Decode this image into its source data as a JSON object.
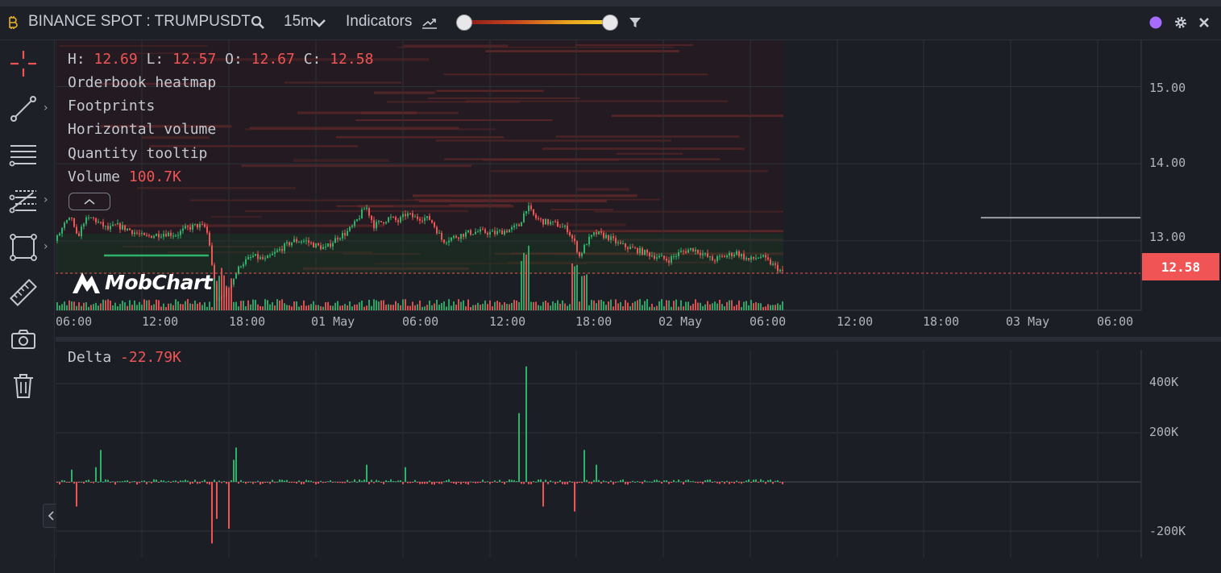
{
  "toolbar": {
    "symbol": "BINANCE SPOT : TRUMPUSDT",
    "timeframe": "15m",
    "indicators_label": "Indicators"
  },
  "legend": {
    "h_label": "H:",
    "h_value": "12.69",
    "l_label": "L:",
    "l_value": "12.57",
    "o_label": "O:",
    "o_value": "12.67",
    "c_label": "C:",
    "c_value": "12.58",
    "items": [
      "Orderbook heatmap",
      "Footprints",
      "Horizontal volume",
      "Quantity tooltip"
    ],
    "volume_label": "Volume",
    "volume_value": "100.7K"
  },
  "price_axis": {
    "ticks": [
      "15.00",
      "14.00",
      "13.00"
    ],
    "current": "12.58"
  },
  "time_axis": {
    "ticks": [
      "06:00",
      "12:00",
      "18:00",
      "01 May",
      "06:00",
      "12:00",
      "18:00",
      "02 May",
      "06:00",
      "12:00",
      "18:00",
      "03 May",
      "06:00"
    ]
  },
  "delta": {
    "label": "Delta",
    "value": "-22.79K",
    "ticks": [
      "400K",
      "200K",
      "-200K"
    ]
  },
  "logo": {
    "text": "MobChart"
  },
  "icons": {
    "symbol": "bitcoin-icon",
    "search": "search-icon",
    "chevron": "chevron-down-icon",
    "indicators": "trend-icon",
    "filter": "filter-icon",
    "status": "status-dot-icon",
    "settings": "gear-icon",
    "close": "close-icon"
  },
  "colors": {
    "up": "#2fb36b",
    "down": "#f05454",
    "accent": "#a66cff",
    "background": "#1c1e25"
  },
  "chart_data": [
    {
      "type": "candlestick",
      "title": "BINANCE SPOT : TRUMPUSDT",
      "interval": "15m",
      "ylim": [
        12.1,
        15.6
      ],
      "y_ticks": [
        15.0,
        14.0,
        13.0
      ],
      "x_ticks": [
        "06:00",
        "12:00",
        "18:00",
        "01 May",
        "06:00",
        "12:00",
        "18:00",
        "02 May",
        "06:00",
        "12:00",
        "18:00",
        "03 May",
        "06:00"
      ],
      "last": {
        "open": 12.67,
        "high": 12.69,
        "low": 12.57,
        "close": 12.58
      },
      "close_path": [
        [
          0,
          13.0
        ],
        [
          10,
          13.2
        ],
        [
          20,
          13.3
        ],
        [
          25,
          13.05
        ],
        [
          30,
          13.1
        ],
        [
          35,
          13.25
        ],
        [
          45,
          13.3
        ],
        [
          55,
          13.22
        ],
        [
          65,
          13.15
        ],
        [
          75,
          13.2
        ],
        [
          90,
          13.15
        ],
        [
          110,
          13.05
        ],
        [
          135,
          13.1
        ],
        [
          150,
          13.08
        ],
        [
          160,
          13.15
        ],
        [
          175,
          13.2
        ],
        [
          185,
          13.18
        ],
        [
          190,
          13.05
        ],
        [
          193,
          12.75
        ],
        [
          200,
          12.2
        ],
        [
          215,
          12.4
        ],
        [
          230,
          12.7
        ],
        [
          245,
          12.8
        ],
        [
          260,
          12.75
        ],
        [
          280,
          12.9
        ],
        [
          295,
          13.0
        ],
        [
          310,
          13.0
        ],
        [
          320,
          12.95
        ],
        [
          335,
          12.9
        ],
        [
          350,
          13.05
        ],
        [
          360,
          13.1
        ],
        [
          370,
          13.2
        ],
        [
          385,
          13.45
        ],
        [
          395,
          13.2
        ],
        [
          405,
          13.25
        ],
        [
          415,
          13.3
        ],
        [
          425,
          13.25
        ],
        [
          435,
          13.35
        ],
        [
          445,
          13.3
        ],
        [
          455,
          13.3
        ],
        [
          465,
          13.28
        ],
        [
          475,
          13.1
        ],
        [
          480,
          13.0
        ],
        [
          495,
          13.05
        ],
        [
          510,
          13.1
        ],
        [
          525,
          13.12
        ],
        [
          545,
          13.1
        ],
        [
          565,
          13.15
        ],
        [
          575,
          13.2
        ],
        [
          585,
          13.45
        ],
        [
          595,
          13.3
        ],
        [
          605,
          13.25
        ],
        [
          620,
          13.22
        ],
        [
          635,
          13.15
        ],
        [
          645,
          12.95
        ],
        [
          650,
          12.8
        ],
        [
          660,
          13.0
        ],
        [
          670,
          13.1
        ],
        [
          685,
          13.05
        ],
        [
          700,
          12.95
        ],
        [
          715,
          12.9
        ],
        [
          730,
          12.85
        ],
        [
          745,
          12.8
        ],
        [
          760,
          12.75
        ],
        [
          775,
          12.85
        ],
        [
          790,
          12.9
        ],
        [
          800,
          12.85
        ],
        [
          815,
          12.75
        ],
        [
          830,
          12.8
        ],
        [
          845,
          12.85
        ],
        [
          860,
          12.75
        ],
        [
          875,
          12.8
        ],
        [
          895,
          12.65
        ],
        [
          903,
          12.58
        ]
      ]
    },
    {
      "type": "bar",
      "title": "Delta",
      "value": "-22.79K",
      "ylim": [
        -280,
        480
      ],
      "y_ticks": [
        400,
        200,
        -200
      ],
      "spikes": [
        {
          "x": 20,
          "value": 50
        },
        {
          "x": 25,
          "value": -100
        },
        {
          "x": 50,
          "value": 60
        },
        {
          "x": 55,
          "value": 130
        },
        {
          "x": 195,
          "value": -250
        },
        {
          "x": 200,
          "value": -150
        },
        {
          "x": 215,
          "value": -190
        },
        {
          "x": 220,
          "value": 90
        },
        {
          "x": 225,
          "value": 140
        },
        {
          "x": 385,
          "value": 70
        },
        {
          "x": 435,
          "value": 60
        },
        {
          "x": 575,
          "value": 280
        },
        {
          "x": 585,
          "value": 470
        },
        {
          "x": 605,
          "value": -100
        },
        {
          "x": 645,
          "value": -120
        },
        {
          "x": 655,
          "value": 130
        },
        {
          "x": 670,
          "value": 70
        }
      ]
    }
  ]
}
